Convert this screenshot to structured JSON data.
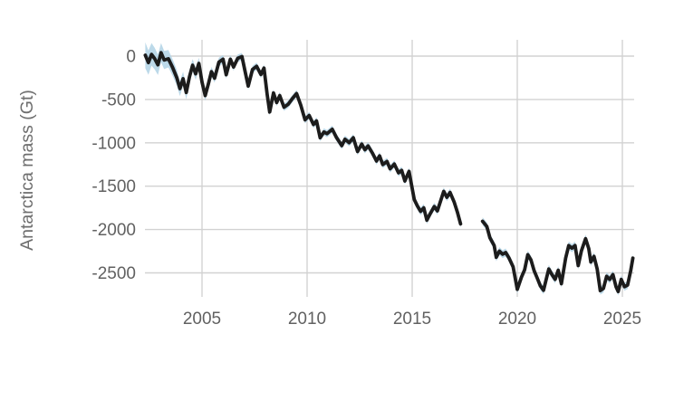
{
  "chart_data": {
    "type": "line",
    "title": "",
    "xlabel": "",
    "ylabel": "Antarctica mass (Gt)",
    "x_ticks": [
      2005,
      2010,
      2015,
      2020,
      2025
    ],
    "y_ticks": [
      0,
      -500,
      -1000,
      -1500,
      -2000,
      -2500
    ],
    "y_tick_labels": [
      "0",
      "-500",
      "-1000",
      "-1500",
      "-2000",
      "-2500"
    ],
    "xlim": [
      2002.3,
      2025.6
    ],
    "ylim": [
      -2780,
      190
    ],
    "grid": true,
    "legend_position": "none",
    "colors": {
      "line": "#1c1c1c",
      "uncertainty_band": "#b5d5e7",
      "gridline": "#d2d2d2",
      "tick_label": "#616161",
      "axis_label": "#6e6e6e",
      "background": "#ffffff"
    },
    "gap_between_segments": [
      2017.3,
      2018.35
    ],
    "series": [
      {
        "name": "segment-1",
        "points": [
          [
            2002.3,
            10,
            150
          ],
          [
            2002.45,
            -75,
            140
          ],
          [
            2002.6,
            20,
            130
          ],
          [
            2002.75,
            -30,
            125
          ],
          [
            2002.9,
            -100,
            118
          ],
          [
            2003.05,
            40,
            110
          ],
          [
            2003.2,
            -45,
            105
          ],
          [
            2003.4,
            -30,
            100
          ],
          [
            2003.6,
            -130,
            95
          ],
          [
            2003.8,
            -250,
            90
          ],
          [
            2003.95,
            -375,
            85
          ],
          [
            2004.1,
            -260,
            80
          ],
          [
            2004.25,
            -420,
            78
          ],
          [
            2004.4,
            -240,
            75
          ],
          [
            2004.55,
            -105,
            72
          ],
          [
            2004.7,
            -205,
            70
          ],
          [
            2004.85,
            -85,
            66
          ],
          [
            2005.0,
            -300,
            62
          ],
          [
            2005.15,
            -455,
            60
          ],
          [
            2005.3,
            -320,
            57
          ],
          [
            2005.45,
            -180,
            55
          ],
          [
            2005.6,
            -255,
            52
          ],
          [
            2005.8,
            -70,
            50
          ],
          [
            2006.0,
            -35,
            48
          ],
          [
            2006.15,
            -215,
            46
          ],
          [
            2006.35,
            -35,
            45
          ],
          [
            2006.5,
            -125,
            44
          ],
          [
            2006.7,
            -25,
            43
          ],
          [
            2006.9,
            -5,
            42
          ],
          [
            2007.05,
            -180,
            42
          ],
          [
            2007.2,
            -345,
            42
          ],
          [
            2007.4,
            -155,
            42
          ],
          [
            2007.6,
            -118,
            42
          ],
          [
            2007.8,
            -212,
            42
          ],
          [
            2007.95,
            -138,
            42
          ],
          [
            2008.1,
            -440,
            42
          ],
          [
            2008.22,
            -645,
            42
          ],
          [
            2008.4,
            -425,
            42
          ],
          [
            2008.55,
            -535,
            42
          ],
          [
            2008.7,
            -455,
            42
          ],
          [
            2008.9,
            -590,
            42
          ],
          [
            2009.1,
            -555,
            42
          ],
          [
            2009.3,
            -490,
            42
          ],
          [
            2009.5,
            -432,
            42
          ],
          [
            2009.7,
            -565,
            42
          ],
          [
            2009.9,
            -735,
            42
          ],
          [
            2010.1,
            -685,
            42
          ],
          [
            2010.3,
            -788,
            42
          ],
          [
            2010.45,
            -748,
            42
          ],
          [
            2010.62,
            -942,
            42
          ],
          [
            2010.8,
            -875,
            42
          ],
          [
            2010.95,
            -895,
            42
          ],
          [
            2011.2,
            -843,
            42
          ],
          [
            2011.4,
            -940,
            42
          ],
          [
            2011.65,
            -1032,
            42
          ],
          [
            2011.8,
            -958,
            42
          ],
          [
            2012.0,
            -998,
            42
          ],
          [
            2012.2,
            -942,
            42
          ],
          [
            2012.4,
            -1100,
            42
          ],
          [
            2012.6,
            -1015,
            42
          ],
          [
            2012.75,
            -1080,
            42
          ],
          [
            2012.9,
            -1035,
            42
          ],
          [
            2013.1,
            -1115,
            42
          ],
          [
            2013.3,
            -1210,
            42
          ],
          [
            2013.45,
            -1150,
            42
          ],
          [
            2013.6,
            -1250,
            42
          ],
          [
            2013.8,
            -1215,
            42
          ],
          [
            2013.95,
            -1300,
            42
          ],
          [
            2014.15,
            -1245,
            42
          ],
          [
            2014.35,
            -1345,
            42
          ],
          [
            2014.5,
            -1318,
            42
          ],
          [
            2014.65,
            -1440,
            42
          ],
          [
            2014.85,
            -1330,
            44
          ],
          [
            2015.1,
            -1655,
            44
          ],
          [
            2015.25,
            -1730,
            44
          ],
          [
            2015.4,
            -1790,
            44
          ],
          [
            2015.55,
            -1750,
            44
          ],
          [
            2015.7,
            -1892,
            44
          ],
          [
            2015.85,
            -1820,
            44
          ],
          [
            2016.05,
            -1735,
            44
          ],
          [
            2016.2,
            -1785,
            44
          ],
          [
            2016.5,
            -1560,
            44
          ],
          [
            2016.65,
            -1628,
            44
          ],
          [
            2016.8,
            -1572,
            44
          ],
          [
            2017.0,
            -1685,
            44
          ],
          [
            2017.15,
            -1800,
            44
          ],
          [
            2017.3,
            -1935,
            44
          ]
        ]
      },
      {
        "name": "segment-2",
        "points": [
          [
            2018.35,
            -1905,
            46
          ],
          [
            2018.55,
            -1965,
            46
          ],
          [
            2018.7,
            -2095,
            46
          ],
          [
            2018.9,
            -2185,
            46
          ],
          [
            2019.0,
            -2320,
            46
          ],
          [
            2019.15,
            -2250,
            46
          ],
          [
            2019.3,
            -2285,
            46
          ],
          [
            2019.45,
            -2265,
            46
          ],
          [
            2019.6,
            -2325,
            46
          ],
          [
            2019.8,
            -2430,
            46
          ],
          [
            2020.0,
            -2690,
            46
          ],
          [
            2020.2,
            -2550,
            46
          ],
          [
            2020.35,
            -2465,
            46
          ],
          [
            2020.5,
            -2290,
            46
          ],
          [
            2020.65,
            -2350,
            46
          ],
          [
            2020.8,
            -2475,
            46
          ],
          [
            2020.95,
            -2560,
            46
          ],
          [
            2021.1,
            -2650,
            46
          ],
          [
            2021.25,
            -2700,
            46
          ],
          [
            2021.4,
            -2550,
            46
          ],
          [
            2021.5,
            -2455,
            46
          ],
          [
            2021.65,
            -2520,
            46
          ],
          [
            2021.8,
            -2575,
            46
          ],
          [
            2021.95,
            -2470,
            46
          ],
          [
            2022.1,
            -2625,
            46
          ],
          [
            2022.3,
            -2330,
            46
          ],
          [
            2022.45,
            -2185,
            46
          ],
          [
            2022.6,
            -2215,
            46
          ],
          [
            2022.75,
            -2185,
            46
          ],
          [
            2022.9,
            -2415,
            46
          ],
          [
            2023.05,
            -2245,
            46
          ],
          [
            2023.25,
            -2105,
            46
          ],
          [
            2023.4,
            -2220,
            46
          ],
          [
            2023.5,
            -2375,
            46
          ],
          [
            2023.65,
            -2310,
            46
          ],
          [
            2023.8,
            -2455,
            46
          ],
          [
            2023.95,
            -2705,
            46
          ],
          [
            2024.1,
            -2680,
            46
          ],
          [
            2024.25,
            -2540,
            46
          ],
          [
            2024.4,
            -2575,
            46
          ],
          [
            2024.55,
            -2520,
            46
          ],
          [
            2024.7,
            -2660,
            46
          ],
          [
            2024.8,
            -2715,
            46
          ],
          [
            2024.95,
            -2575,
            46
          ],
          [
            2025.1,
            -2660,
            46
          ],
          [
            2025.25,
            -2640,
            46
          ],
          [
            2025.4,
            -2470,
            46
          ],
          [
            2025.5,
            -2330,
            46
          ]
        ]
      }
    ]
  }
}
